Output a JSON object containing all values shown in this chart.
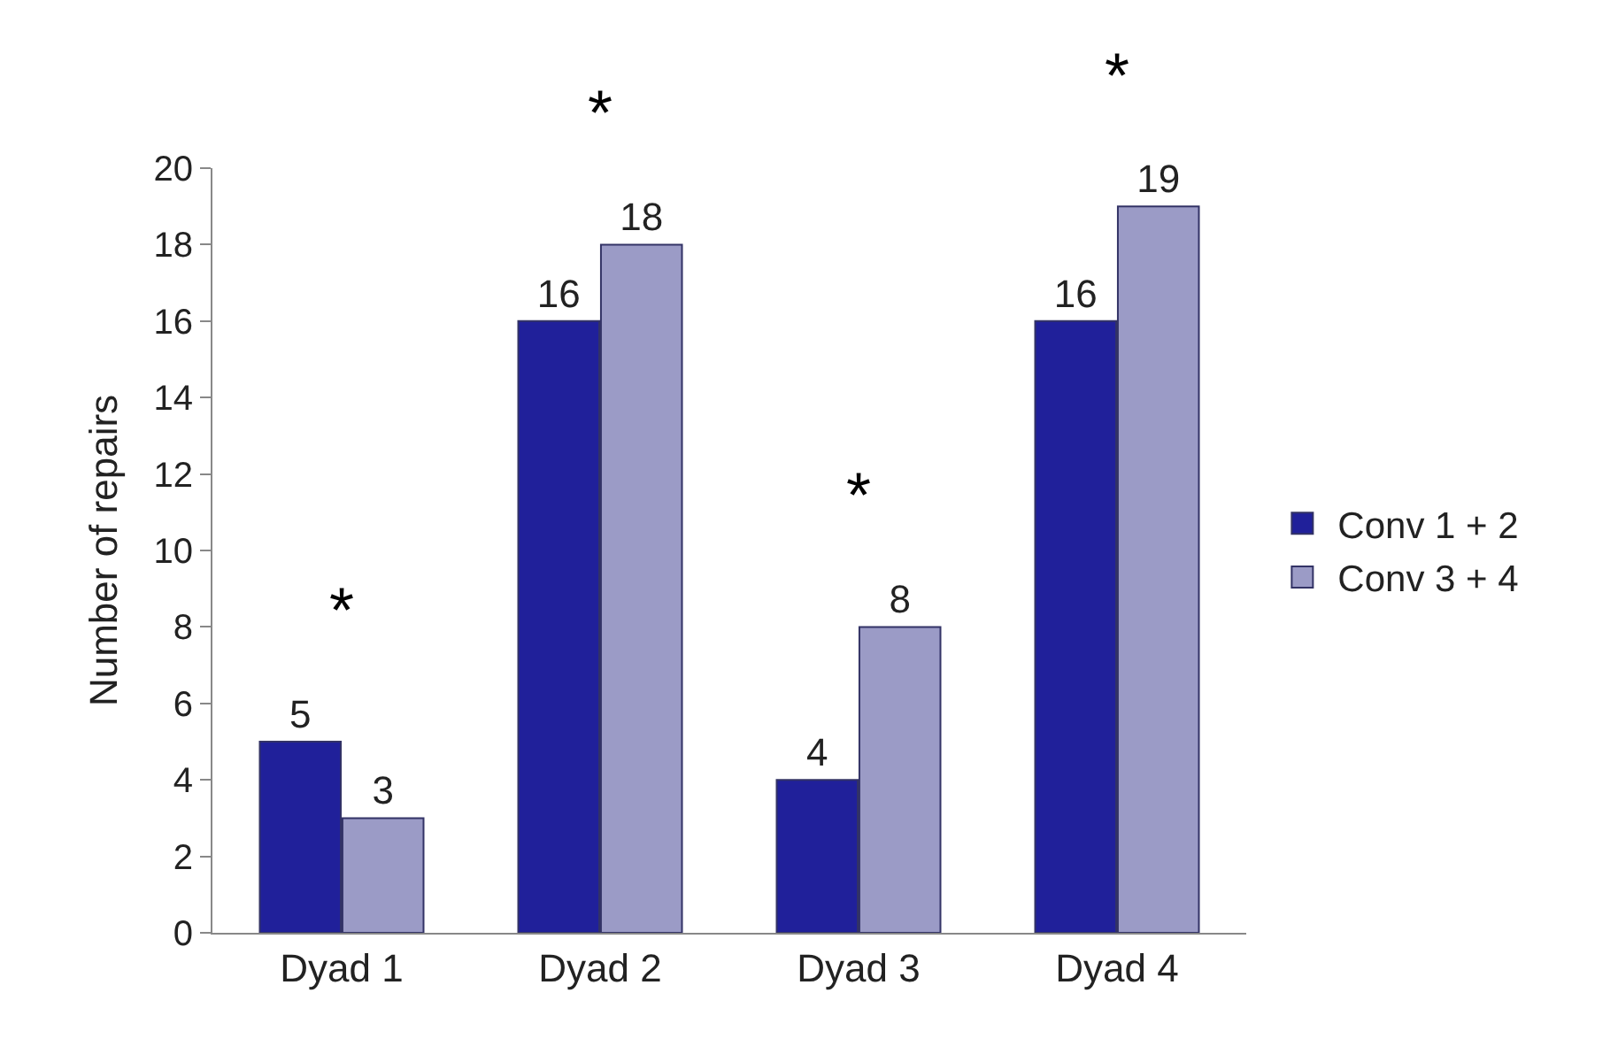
{
  "chart_data": {
    "type": "bar",
    "ylabel": "Number of repairs",
    "categories": [
      "Dyad 1",
      "Dyad 2",
      "Dyad 3",
      "Dyad 4"
    ],
    "series": [
      {
        "name": "Conv 1 + 2",
        "color": "#20209a",
        "values": [
          5,
          16,
          4,
          16
        ]
      },
      {
        "name": "Conv 3 + 4",
        "color": "#9b9bc6",
        "values": [
          3,
          18,
          8,
          19
        ]
      }
    ],
    "ylim": [
      0,
      20
    ],
    "yticks": [
      0,
      2,
      4,
      6,
      8,
      10,
      12,
      14,
      16,
      18,
      20
    ],
    "grid": false,
    "legend": "right",
    "data_labels": true,
    "annotations": [
      "*",
      "*",
      "*",
      "*"
    ]
  }
}
